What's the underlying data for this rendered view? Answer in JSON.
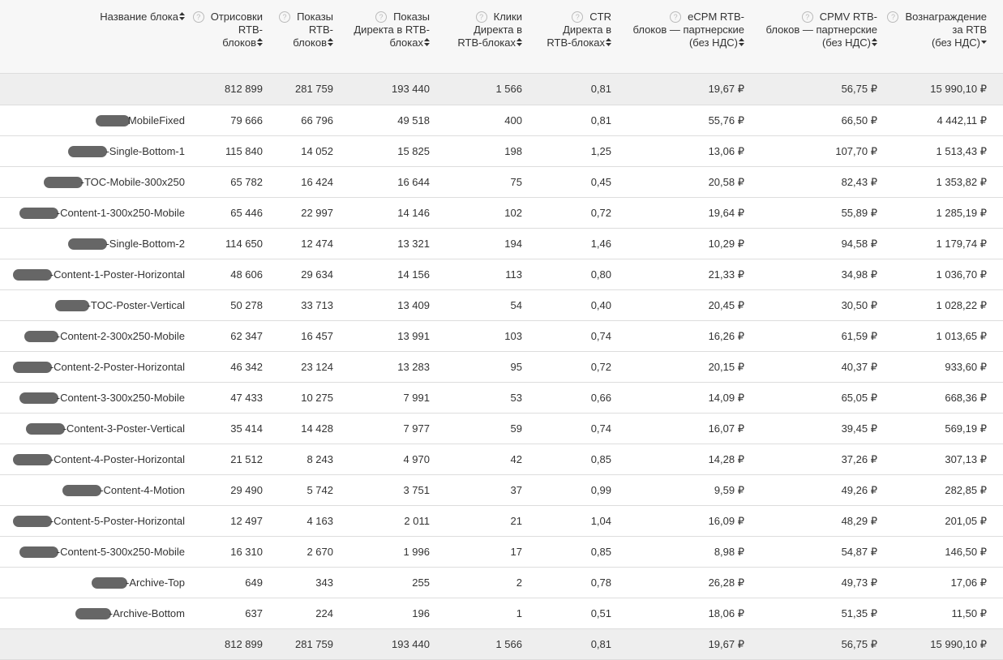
{
  "table": {
    "columns": [
      {
        "lines": [
          "Название блока"
        ]
      },
      {
        "lines": [
          "Отрисовки",
          "RTB-",
          "блоков"
        ]
      },
      {
        "lines": [
          "Показы",
          "RTB-",
          "блоков"
        ]
      },
      {
        "lines": [
          "Показы",
          "Директа в RTB-",
          "блоках"
        ]
      },
      {
        "lines": [
          "Клики",
          "Директа в",
          "RTB-блоках"
        ]
      },
      {
        "lines": [
          "CTR",
          "Директа в",
          "RTB-блоках"
        ]
      },
      {
        "lines": [
          "eCPM RTB-",
          "блоков — партнерские",
          "(без НДС)"
        ]
      },
      {
        "lines": [
          "CPMV RTB-",
          "блоков — партнерские",
          "(без НДС)"
        ]
      },
      {
        "lines": [
          "Вознаграждение",
          "за RTB",
          "(без НДС)"
        ]
      }
    ],
    "totals": [
      "812 899",
      "281 759",
      "193 440",
      "1 566",
      "0,81",
      "19,67 ₽",
      "56,75 ₽",
      "15 990,10 ₽"
    ],
    "rows": [
      [
        "MobileFixed",
        "79 666",
        "66 796",
        "49 518",
        "400",
        "0,81",
        "55,76 ₽",
        "66,50 ₽",
        "4 442,11 ₽"
      ],
      [
        "-Single-Bottom-1",
        "115 840",
        "14 052",
        "15 825",
        "198",
        "1,25",
        "13,06 ₽",
        "107,70 ₽",
        "1 513,43 ₽"
      ],
      [
        "-TOC-Mobile-300x250",
        "65 782",
        "16 424",
        "16 644",
        "75",
        "0,45",
        "20,58 ₽",
        "82,43 ₽",
        "1 353,82 ₽"
      ],
      [
        "-Content-1-300x250-Mobile",
        "65 446",
        "22 997",
        "14 146",
        "102",
        "0,72",
        "19,64 ₽",
        "55,89 ₽",
        "1 285,19 ₽"
      ],
      [
        "-Single-Bottom-2",
        "114 650",
        "12 474",
        "13 321",
        "194",
        "1,46",
        "10,29 ₽",
        "94,58 ₽",
        "1 179,74 ₽"
      ],
      [
        "-Content-1-Poster-Horizontal",
        "48 606",
        "29 634",
        "14 156",
        "113",
        "0,80",
        "21,33 ₽",
        "34,98 ₽",
        "1 036,70 ₽"
      ],
      [
        "-TOC-Poster-Vertical",
        "50 278",
        "33 713",
        "13 409",
        "54",
        "0,40",
        "20,45 ₽",
        "30,50 ₽",
        "1 028,22 ₽"
      ],
      [
        "-Content-2-300x250-Mobile",
        "62 347",
        "16 457",
        "13 991",
        "103",
        "0,74",
        "16,26 ₽",
        "61,59 ₽",
        "1 013,65 ₽"
      ],
      [
        "-Content-2-Poster-Horizontal",
        "46 342",
        "23 124",
        "13 283",
        "95",
        "0,72",
        "20,15 ₽",
        "40,37 ₽",
        "933,60 ₽"
      ],
      [
        "-Content-3-300x250-Mobile",
        "47 433",
        "10 275",
        "7 991",
        "53",
        "0,66",
        "14,09 ₽",
        "65,05 ₽",
        "668,36 ₽"
      ],
      [
        "-Content-3-Poster-Vertical",
        "35 414",
        "14 428",
        "7 977",
        "59",
        "0,74",
        "16,07 ₽",
        "39,45 ₽",
        "569,19 ₽"
      ],
      [
        "-Content-4-Poster-Horizontal",
        "21 512",
        "8 243",
        "4 970",
        "42",
        "0,85",
        "14,28 ₽",
        "37,26 ₽",
        "307,13 ₽"
      ],
      [
        "-Content-4-Motion",
        "29 490",
        "5 742",
        "3 751",
        "37",
        "0,99",
        "9,59 ₽",
        "49,26 ₽",
        "282,85 ₽"
      ],
      [
        "-Content-5-Poster-Horizontal",
        "12 497",
        "4 163",
        "2 011",
        "21",
        "1,04",
        "16,09 ₽",
        "48,29 ₽",
        "201,05 ₽"
      ],
      [
        "-Content-5-300x250-Mobile",
        "16 310",
        "2 670",
        "1 996",
        "17",
        "0,85",
        "8,98 ₽",
        "54,87 ₽",
        "146,50 ₽"
      ],
      [
        "-Archive-Top",
        "649",
        "343",
        "255",
        "2",
        "0,78",
        "26,28 ₽",
        "49,73 ₽",
        "17,06 ₽"
      ],
      [
        "-Archive-Bottom",
        "637",
        "224",
        "196",
        "1",
        "0,51",
        "18,06 ₽",
        "51,35 ₽",
        "11,50 ₽"
      ]
    ],
    "footer": [
      "812 899",
      "281 759",
      "193 440",
      "1 566",
      "0,81",
      "19,67 ₽",
      "56,75 ₽",
      "15 990,10 ₽"
    ]
  }
}
